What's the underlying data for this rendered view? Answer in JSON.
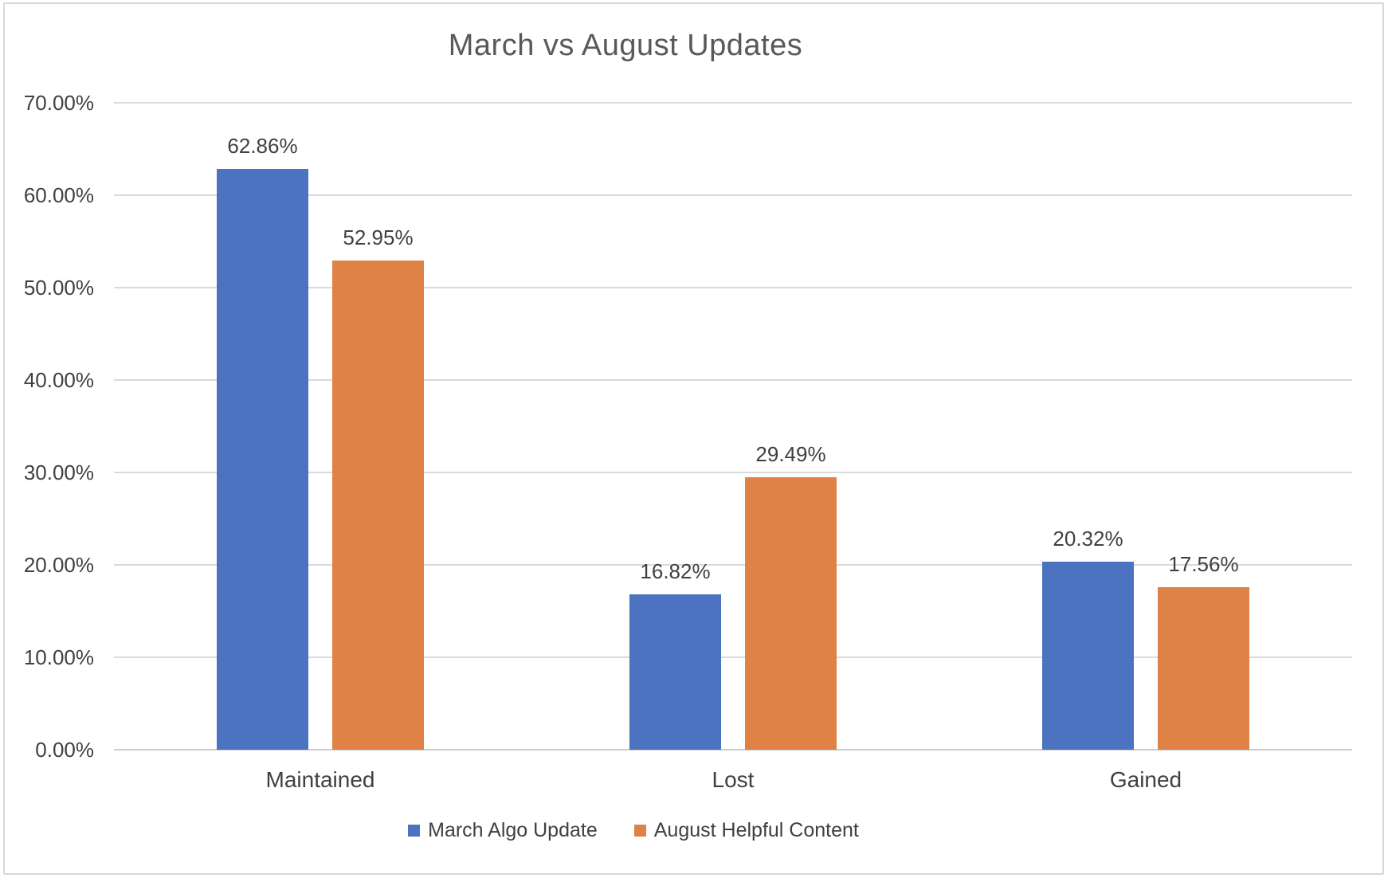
{
  "chart_data": {
    "type": "bar",
    "title": "March vs August Updates",
    "categories": [
      "Maintained",
      "Lost",
      "Gained"
    ],
    "series": [
      {
        "name": "March Algo Update",
        "color": "#4b73c0",
        "values": [
          62.86,
          16.82,
          20.32
        ],
        "data_labels": [
          "62.86%",
          "16.82%",
          "20.32%"
        ]
      },
      {
        "name": "August Helpful Content",
        "color": "#de8245",
        "values": [
          52.95,
          29.49,
          17.56
        ],
        "data_labels": [
          "52.95%",
          "29.49%",
          "17.56%"
        ]
      }
    ],
    "y_axis": {
      "min": 0,
      "max": 70,
      "step": 10,
      "tick_labels": [
        "0.00%",
        "10.00%",
        "20.00%",
        "30.00%",
        "40.00%",
        "50.00%",
        "60.00%",
        "70.00%"
      ]
    },
    "xlabel": "",
    "ylabel": "",
    "grid": true,
    "legend_position": "bottom",
    "colors": {
      "title_text": "#595959",
      "label_text": "#404040",
      "gridline": "#dadada",
      "axis_line": "#cfcdcd",
      "border": "#d8d8d8",
      "background": "#ffffff"
    }
  }
}
